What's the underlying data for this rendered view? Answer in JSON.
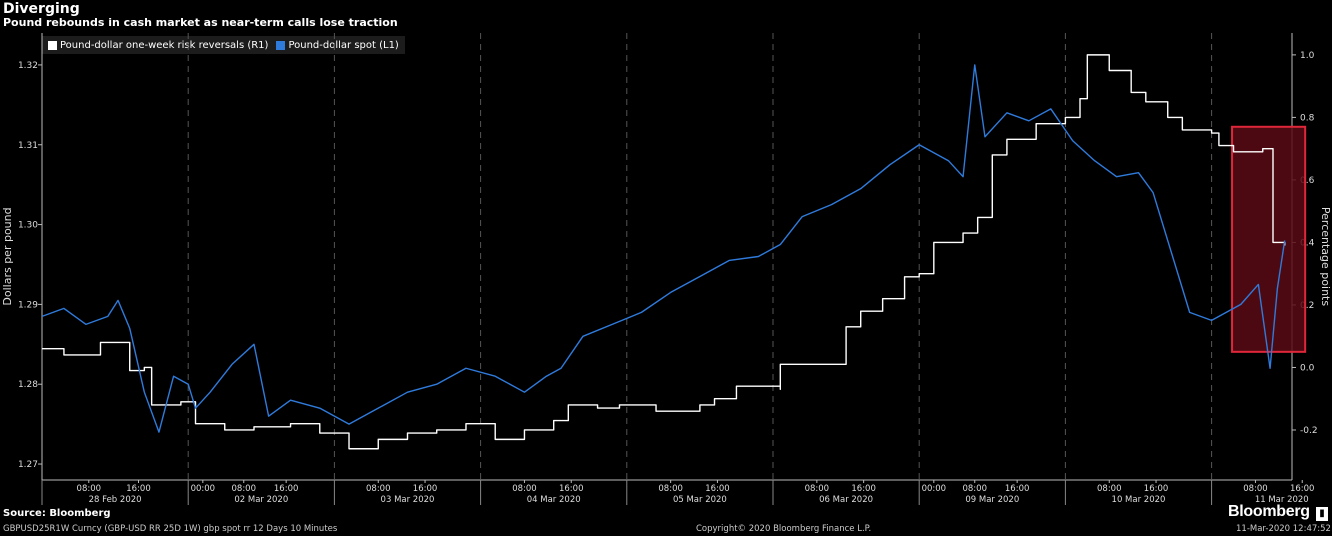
{
  "chart_data": {
    "type": "line",
    "title": "Diverging",
    "subtitle": "Pound rebounds in cash market as near-term calls lose traction",
    "ylabel_left": "Dollars per pound",
    "ylabel_right": "Percentage points",
    "ylim_left": [
      1.268,
      1.324
    ],
    "ylim_right": [
      -0.36,
      1.07
    ],
    "yticks_left": [
      "1.27",
      "1.28",
      "1.29",
      "1.30",
      "1.31",
      "1.32"
    ],
    "yticks_left_values": [
      1.27,
      1.28,
      1.29,
      1.3,
      1.31,
      1.32
    ],
    "yticks_right": [
      "-0.2",
      "0.0",
      "0.2",
      "0.4",
      "0.6",
      "0.8",
      "1.0"
    ],
    "yticks_right_values": [
      -0.2,
      0.0,
      0.2,
      0.4,
      0.6,
      0.8,
      1.0
    ],
    "grid": "vertical dashed day separators",
    "legend_position": "top-left",
    "days": [
      {
        "label": "28 Feb 2020",
        "start": 0,
        "end": 1,
        "hours": [
          "08:00",
          "16:00"
        ],
        "hour_pos": [
          0.32,
          0.66
        ]
      },
      {
        "label": "02 Mar 2020",
        "start": 1,
        "end": 2,
        "hours": [
          "00:00",
          "08:00",
          "16:00"
        ],
        "hour_pos": [
          0.1,
          0.38,
          0.67
        ]
      },
      {
        "label": "03 Mar 2020",
        "start": 2,
        "end": 3,
        "hours": [
          "08:00",
          "16:00"
        ],
        "hour_pos": [
          0.3,
          0.62
        ]
      },
      {
        "label": "04 Mar 2020",
        "start": 3,
        "end": 4,
        "hours": [
          "08:00",
          "16:00"
        ],
        "hour_pos": [
          0.3,
          0.62
        ]
      },
      {
        "label": "05 Mar 2020",
        "start": 4,
        "end": 5,
        "hours": [
          "08:00",
          "16:00"
        ],
        "hour_pos": [
          0.3,
          0.62
        ]
      },
      {
        "label": "06 Mar 2020",
        "start": 5,
        "end": 6,
        "hours": [
          "08:00",
          "16:00"
        ],
        "hour_pos": [
          0.3,
          0.62
        ]
      },
      {
        "label": "09 Mar 2020",
        "start": 6,
        "end": 7,
        "hours": [
          "00:00",
          "08:00",
          "16:00"
        ],
        "hour_pos": [
          0.1,
          0.38,
          0.67
        ]
      },
      {
        "label": "10 Mar 2020",
        "start": 7,
        "end": 8,
        "hours": [
          "08:00",
          "16:00"
        ],
        "hour_pos": [
          0.3,
          0.62
        ]
      },
      {
        "label": "11 Mar 2020",
        "start": 8,
        "end": 9,
        "hours": [
          "08:00",
          "16:00"
        ],
        "hour_pos": [
          0.3,
          0.62
        ]
      }
    ],
    "x_range": [
      0,
      8.55
    ],
    "series": [
      {
        "name": "Pound-dollar one-week risk reversals (R1)",
        "axis": "right",
        "color": "#ffffff",
        "step": true,
        "points": [
          [
            0,
            0.06
          ],
          [
            0.15,
            0.04
          ],
          [
            0.4,
            0.08
          ],
          [
            0.6,
            -0.01
          ],
          [
            0.7,
            0.0
          ],
          [
            0.75,
            -0.12
          ],
          [
            0.95,
            -0.11
          ],
          [
            1.05,
            -0.18
          ],
          [
            1.25,
            -0.2
          ],
          [
            1.45,
            -0.19
          ],
          [
            1.7,
            -0.18
          ],
          [
            1.9,
            -0.21
          ],
          [
            2.1,
            -0.26
          ],
          [
            2.3,
            -0.23
          ],
          [
            2.5,
            -0.21
          ],
          [
            2.7,
            -0.2
          ],
          [
            2.9,
            -0.18
          ],
          [
            3.1,
            -0.23
          ],
          [
            3.3,
            -0.2
          ],
          [
            3.5,
            -0.17
          ],
          [
            3.6,
            -0.12
          ],
          [
            3.8,
            -0.13
          ],
          [
            3.95,
            -0.12
          ],
          [
            4.2,
            -0.14
          ],
          [
            4.5,
            -0.12
          ],
          [
            4.6,
            -0.1
          ],
          [
            4.75,
            -0.06
          ],
          [
            5.05,
            -0.07
          ],
          [
            5.05,
            0.01
          ],
          [
            5.3,
            0.01
          ],
          [
            5.5,
            0.13
          ],
          [
            5.6,
            0.18
          ],
          [
            5.75,
            0.22
          ],
          [
            5.9,
            0.29
          ],
          [
            6.0,
            0.3
          ],
          [
            6.1,
            0.4
          ],
          [
            6.3,
            0.43
          ],
          [
            6.4,
            0.48
          ],
          [
            6.5,
            0.68
          ],
          [
            6.6,
            0.73
          ],
          [
            6.8,
            0.78
          ],
          [
            7.0,
            0.8
          ],
          [
            7.1,
            0.86
          ],
          [
            7.15,
            1.0
          ],
          [
            7.3,
            0.95
          ],
          [
            7.45,
            0.88
          ],
          [
            7.55,
            0.85
          ],
          [
            7.7,
            0.8
          ],
          [
            7.8,
            0.76
          ],
          [
            8.0,
            0.75
          ],
          [
            8.05,
            0.71
          ],
          [
            8.15,
            0.69
          ],
          [
            8.35,
            0.7
          ],
          [
            8.42,
            0.4
          ],
          [
            8.5,
            0.39
          ]
        ]
      },
      {
        "name": "Pound-dollar spot (L1)",
        "axis": "left",
        "color": "#2f7bdc",
        "step": false,
        "points": [
          [
            0,
            1.2885
          ],
          [
            0.15,
            1.2895
          ],
          [
            0.3,
            1.2875
          ],
          [
            0.45,
            1.2885
          ],
          [
            0.52,
            1.2905
          ],
          [
            0.6,
            1.287
          ],
          [
            0.7,
            1.279
          ],
          [
            0.8,
            1.274
          ],
          [
            0.9,
            1.281
          ],
          [
            1.0,
            1.28
          ],
          [
            1.05,
            1.277
          ],
          [
            1.15,
            1.279
          ],
          [
            1.3,
            1.2825
          ],
          [
            1.45,
            1.285
          ],
          [
            1.55,
            1.276
          ],
          [
            1.7,
            1.278
          ],
          [
            1.9,
            1.277
          ],
          [
            2.1,
            1.275
          ],
          [
            2.3,
            1.277
          ],
          [
            2.5,
            1.279
          ],
          [
            2.7,
            1.28
          ],
          [
            2.9,
            1.282
          ],
          [
            3.1,
            1.281
          ],
          [
            3.3,
            1.279
          ],
          [
            3.45,
            1.281
          ],
          [
            3.55,
            1.282
          ],
          [
            3.7,
            1.286
          ],
          [
            3.9,
            1.2875
          ],
          [
            4.1,
            1.289
          ],
          [
            4.3,
            1.2915
          ],
          [
            4.5,
            1.2935
          ],
          [
            4.7,
            1.2955
          ],
          [
            4.9,
            1.296
          ],
          [
            5.05,
            1.2975
          ],
          [
            5.2,
            1.301
          ],
          [
            5.4,
            1.3025
          ],
          [
            5.6,
            1.3045
          ],
          [
            5.8,
            1.3075
          ],
          [
            6.0,
            1.31
          ],
          [
            6.2,
            1.308
          ],
          [
            6.3,
            1.306
          ],
          [
            6.38,
            1.32
          ],
          [
            6.45,
            1.311
          ],
          [
            6.6,
            1.314
          ],
          [
            6.75,
            1.313
          ],
          [
            6.9,
            1.3145
          ],
          [
            7.05,
            1.3105
          ],
          [
            7.2,
            1.308
          ],
          [
            7.35,
            1.306
          ],
          [
            7.5,
            1.3065
          ],
          [
            7.6,
            1.304
          ],
          [
            7.75,
            1.295
          ],
          [
            7.85,
            1.289
          ],
          [
            8.0,
            1.288
          ],
          [
            8.2,
            1.29
          ],
          [
            8.32,
            1.2925
          ],
          [
            8.4,
            1.282
          ],
          [
            8.45,
            1.292
          ],
          [
            8.5,
            1.298
          ]
        ]
      }
    ],
    "highlight_region": {
      "x": [
        8.14,
        8.64
      ],
      "y_right": [
        0.05,
        0.77
      ],
      "fill": "#5a0a14",
      "stroke": "#e0263a"
    }
  },
  "legend": {
    "r1_label": "Pound-dollar one-week risk reversals (R1)",
    "l1_label": "Pound-dollar spot (L1)"
  },
  "footer": {
    "source": "Source: Bloomberg",
    "ticker": "GBPUSD25R1W Curncy (GBP-USD RR 25D 1W) gbp spot rr 12 Days 10 Minutes",
    "copyright": "Copyright© 2020 Bloomberg Finance L.P.",
    "timestamp": "11-Mar-2020 12:47:52",
    "brand": "Bloomberg"
  }
}
